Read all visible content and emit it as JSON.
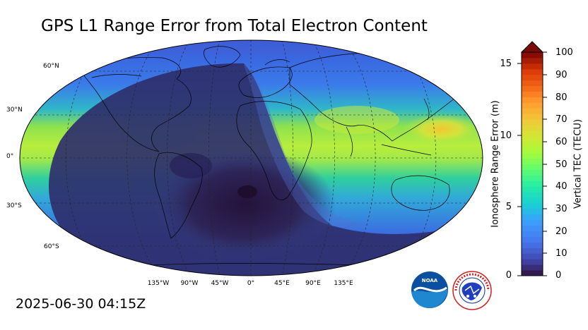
{
  "title": "GPS L1 Range Error from Total Electron Content",
  "timestamp": "2025-06-30 04:15Z",
  "map": {
    "projection": "Robinson",
    "latitude_labels": [
      "60°N",
      "30°N",
      "0°",
      "30°S",
      "60°S"
    ],
    "longitude_labels": [
      "135°W",
      "90°W",
      "45°W",
      "0°",
      "45°E",
      "90°E",
      "135°E"
    ],
    "gridlines": "dashed",
    "daylight_region": "eastern hemisphere (Africa, Asia, Australia)",
    "night_region": "Americas and Atlantic"
  },
  "colorbar": {
    "left_label": "Ionosphere Range Error (m)",
    "right_label": "Vertical TEC (TECU)",
    "left_ticks": [
      "15",
      "10",
      "5",
      "0"
    ],
    "right_ticks": [
      "100",
      "90",
      "80",
      "70",
      "60",
      "50",
      "40",
      "30",
      "20",
      "10",
      "0"
    ],
    "tec_range": [
      0,
      100
    ],
    "range_error_range": [
      0,
      16.2
    ],
    "extend": "max"
  },
  "logos": {
    "noaa": "NOAA",
    "nws": "NATIONAL WEATHER SERVICE"
  },
  "colors": {
    "night": "#2f2d64",
    "background_field": "#3a6fe0",
    "equatorial_band": "#a6ea45",
    "hotspot": "#f1c232"
  }
}
